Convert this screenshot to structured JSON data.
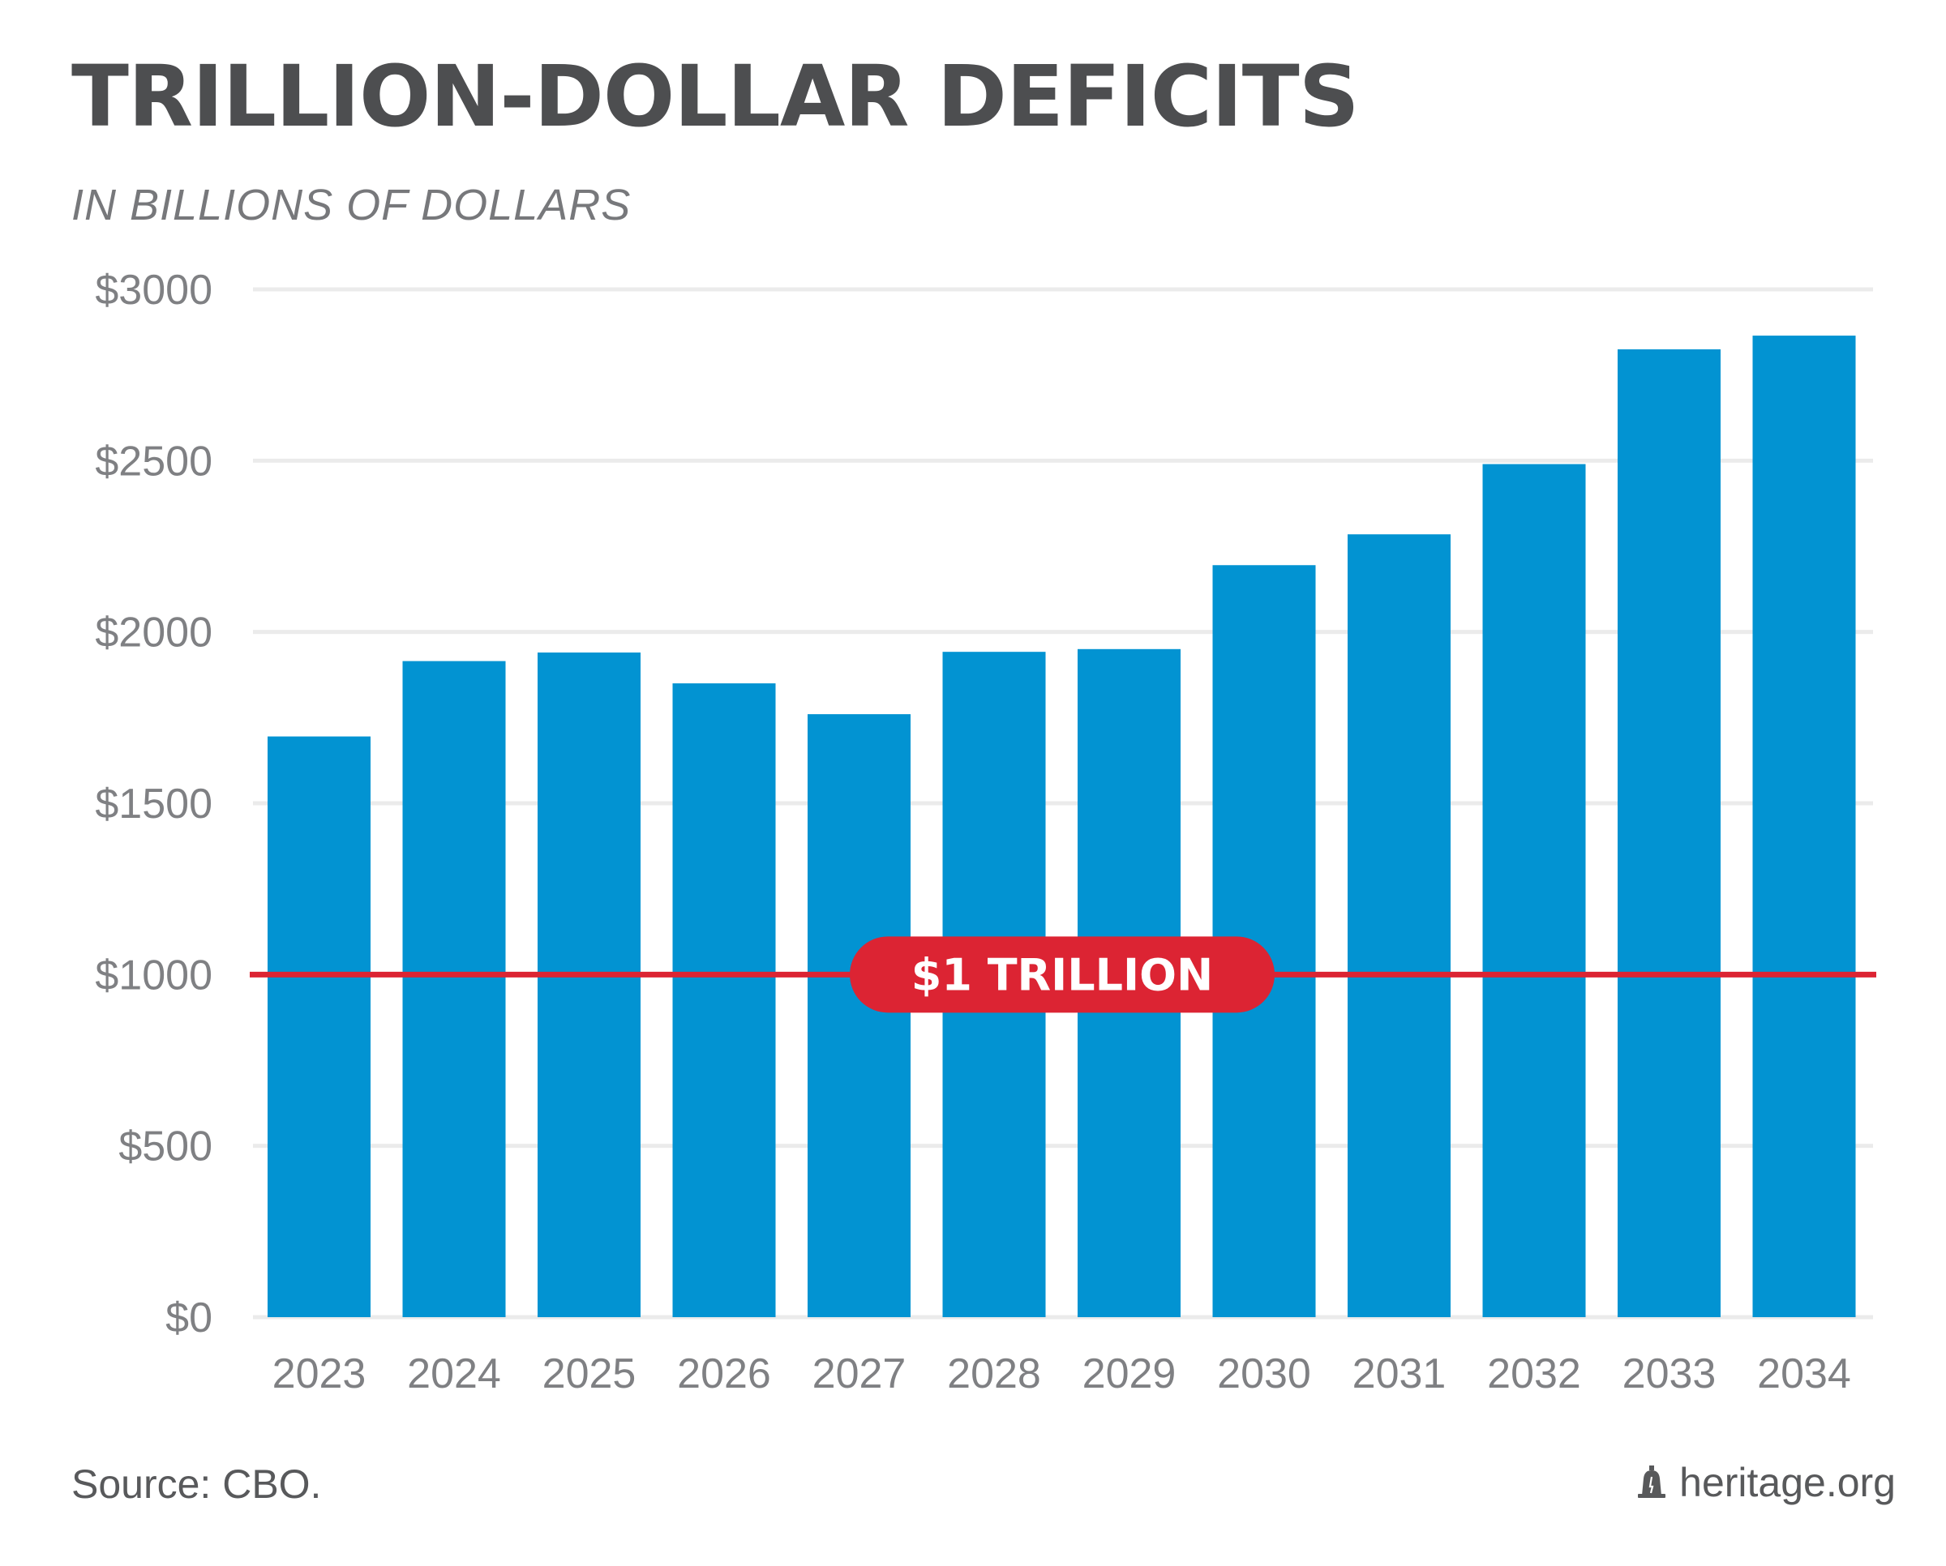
{
  "colors": {
    "bar": "#0293d2",
    "threshold": "#dc2433",
    "grid": "#ebebeb",
    "tick_text": "#7f8083",
    "title": "#4d4e50"
  },
  "footer": {
    "source": "Source: CBO.",
    "brand": "heritage.org",
    "brand_icon": "liberty-bell-icon"
  },
  "chart_data": {
    "type": "bar",
    "title": "TRILLION-DOLLAR DEFICITS",
    "subtitle": "IN BILLIONS OF DOLLARS",
    "categories": [
      "2023",
      "2024",
      "2025",
      "2026",
      "2027",
      "2028",
      "2029",
      "2030",
      "2031",
      "2032",
      "2033",
      "2034"
    ],
    "values": [
      1695,
      1915,
      1940,
      1850,
      1760,
      1942,
      1950,
      2195,
      2285,
      2490,
      2825,
      2865
    ],
    "ylim": [
      0,
      3000
    ],
    "yticks": [
      0,
      500,
      1000,
      1500,
      2000,
      2500,
      3000
    ],
    "ytick_labels": [
      "$0",
      "$500",
      "$1000",
      "$1500",
      "$2000",
      "$2500",
      "$3000"
    ],
    "grid": true,
    "threshold": {
      "value": 1000,
      "label": "$1 TRILLION"
    }
  }
}
